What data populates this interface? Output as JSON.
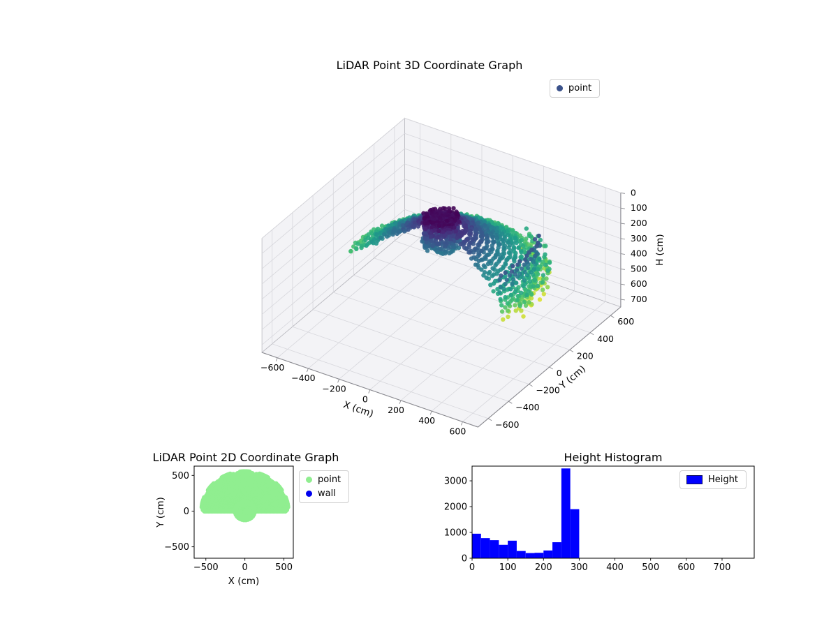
{
  "figure": {
    "background": "#ffffff"
  },
  "chart_data": [
    {
      "id": "lidar_3d",
      "type": "scatter3d",
      "title": "LiDAR Point 3D Coordinate Graph",
      "xlabel": "X (cm)",
      "ylabel": "Y (cm)",
      "zlabel": "H (cm)",
      "xlim": [
        -700,
        700
      ],
      "ylim": [
        -700,
        700
      ],
      "zlim": [
        0,
        750
      ],
      "z_axis_inverted": true,
      "xticks": [
        -600,
        -400,
        -200,
        0,
        200,
        400,
        600
      ],
      "yticks": [
        600,
        400,
        200,
        0,
        -200,
        -400,
        -600
      ],
      "zticks": [
        0,
        100,
        200,
        300,
        400,
        500,
        600,
        700
      ],
      "grid": true,
      "legend_position": "upper right outside axes",
      "legend": [
        {
          "label": "point",
          "color": "#3b528b",
          "marker": "circle"
        }
      ],
      "colormap": "viridis",
      "color_value_range_cm": [
        0,
        430
      ],
      "series": [
        {
          "name": "point",
          "description": "LiDAR dome point cloud colored by height (viridis: dark purple = low H near 0, yellow = high H ~400). Dark central column at origin, concentric scan rings spreading to r~520cm that deepen with radius, yellow outer fringe.",
          "generator": {
            "column": {
              "r": [
                60,
                105
              ],
              "h": [
                10,
                185
              ],
              "n_h": 9,
              "n_az": 56,
              "cap_n": 120
            },
            "rings": {
              "r_min": 130,
              "r_max": 520,
              "n_rings": 14,
              "h_at_rmin": 85,
              "h_at_rmax": 340,
              "azim_deg": [
                -15,
                195
              ],
              "az_step_deg": 3
            },
            "curtain": {
              "azim_deg": [
                -18,
                30
              ],
              "r": 520,
              "h": [
                120,
                400
              ],
              "n_az": 14,
              "n_h": 8
            },
            "fringe": {
              "r": [
                530,
                590
              ],
              "h": [
                290,
                430
              ],
              "azim_deg": [
                -10,
                70
              ],
              "n": 90
            }
          }
        }
      ]
    },
    {
      "id": "lidar_2d",
      "type": "scatter",
      "title": "LiDAR Point 2D Coordinate Graph",
      "xlabel": "X (cm)",
      "ylabel": "Y (cm)",
      "xlim": [
        -650,
        620
      ],
      "ylim": [
        -660,
        630
      ],
      "xticks": [
        -500,
        0,
        500
      ],
      "yticks": [
        500,
        0,
        -500
      ],
      "legend_position": "outside right of axes",
      "legend": [
        {
          "label": "point",
          "color": "#90ee90",
          "marker": "circle"
        },
        {
          "label": "wall",
          "color": "#0000ee",
          "marker": "circle"
        }
      ],
      "series": [
        {
          "name": "point",
          "color": "#90ee90",
          "description": "Solid light-green fan: upper half disc of points to radius ~555cm (azimuth 0-180 deg) with scalloped rim, plus a full small disc of radius ~135cm around the origin dipping below y=0.",
          "generator": {
            "fan": {
              "az_deg": [
                0,
                180
              ],
              "az_step_deg": 2,
              "r_min": 25,
              "r_max": 555,
              "r_step": 17,
              "rim_bump": 35,
              "rim_lobes": 7
            },
            "disc": {
              "r_max": 135,
              "r_step": 16,
              "az_step_deg": 12
            }
          }
        },
        {
          "name": "wall",
          "color": "#0000ee",
          "description": "no wall points visible in plot area"
        }
      ]
    },
    {
      "id": "height_histogram",
      "type": "bar",
      "title": "Height Histogram",
      "xlabel": "",
      "ylabel": "",
      "xlim": [
        0,
        790
      ],
      "ylim": [
        0,
        3570
      ],
      "xticks": [
        0,
        100,
        200,
        300,
        400,
        500,
        600,
        700
      ],
      "yticks": [
        0,
        1000,
        2000,
        3000
      ],
      "legend_position": "upper right inside axes",
      "legend": [
        {
          "label": "Height",
          "color": "#0000ff",
          "marker": "rect"
        }
      ],
      "bar_color": "#0000ff",
      "bin_start": 0,
      "bin_width": 25,
      "values": [
        950,
        780,
        700,
        520,
        680,
        280,
        200,
        210,
        300,
        620,
        3480,
        1900
      ]
    }
  ]
}
